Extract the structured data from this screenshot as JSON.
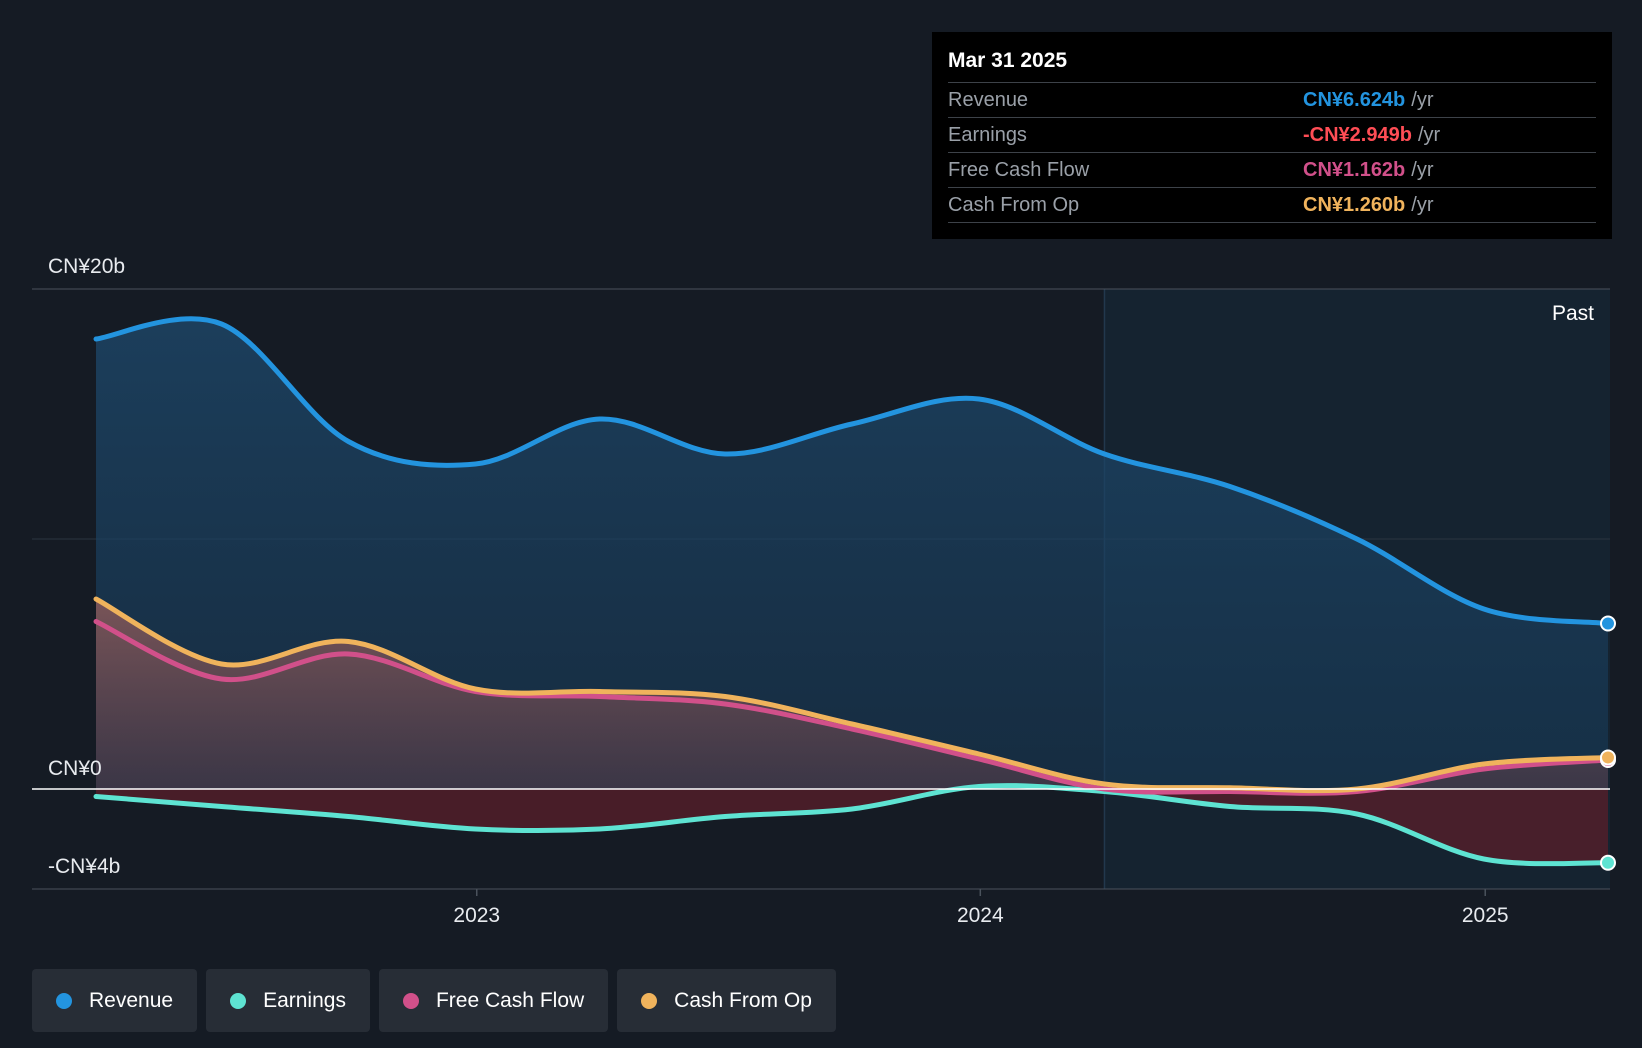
{
  "tooltip": {
    "date": "Mar 31 2025",
    "rows": [
      {
        "label": "Revenue",
        "value": "CN¥6.624b",
        "unit": "/yr",
        "color": "#2394df"
      },
      {
        "label": "Earnings",
        "value": "-CN¥2.949b",
        "unit": "/yr",
        "color": "#ff4d55"
      },
      {
        "label": "Free Cash Flow",
        "value": "CN¥1.162b",
        "unit": "/yr",
        "color": "#d1508a"
      },
      {
        "label": "Cash From Op",
        "value": "CN¥1.260b",
        "unit": "/yr",
        "color": "#f0b35c"
      }
    ]
  },
  "past_label": "Past",
  "legend": [
    {
      "label": "Revenue",
      "color": "#2394df"
    },
    {
      "label": "Earnings",
      "color": "#5ee3d2"
    },
    {
      "label": "Free Cash Flow",
      "color": "#d1508a"
    },
    {
      "label": "Cash From Op",
      "color": "#f0b35c"
    }
  ],
  "chart_data": {
    "type": "area",
    "title": "",
    "xlabel": "",
    "ylabel": "",
    "x_range": [
      "2022-03-31",
      "2025-03-31"
    ],
    "ylim": [
      -4,
      20
    ],
    "y_tick_labels": [
      {
        "value": 20,
        "label": "CN¥20b"
      },
      {
        "value": 0,
        "label": "CN¥0"
      },
      {
        "value": -4,
        "label": "-CN¥4b"
      }
    ],
    "x_tick_labels": [
      {
        "date": "2023-01-01",
        "label": "2023"
      },
      {
        "date": "2024-01-01",
        "label": "2024"
      },
      {
        "date": "2025-01-01",
        "label": "2025"
      }
    ],
    "past_divider_date": "2024-03-31",
    "x": [
      "2022-03-31",
      "2022-06-30",
      "2022-09-30",
      "2022-12-31",
      "2023-03-31",
      "2023-06-30",
      "2023-09-30",
      "2023-12-31",
      "2024-03-31",
      "2024-06-30",
      "2024-09-30",
      "2024-12-31",
      "2025-03-31"
    ],
    "series": [
      {
        "name": "Revenue",
        "color": "#2394df",
        "values": [
          18.0,
          18.6,
          13.9,
          13.0,
          14.8,
          13.4,
          14.6,
          15.6,
          13.4,
          12.1,
          10.0,
          7.2,
          6.62
        ]
      },
      {
        "name": "Earnings",
        "color": "#5ee3d2",
        "values": [
          -0.3,
          -0.7,
          -1.1,
          -1.6,
          -1.6,
          -1.1,
          -0.8,
          0.1,
          -0.1,
          -0.7,
          -1.0,
          -2.8,
          -2.95
        ]
      },
      {
        "name": "Free Cash Flow",
        "color": "#d1508a",
        "values": [
          6.7,
          4.4,
          5.4,
          3.9,
          3.7,
          3.4,
          2.4,
          1.2,
          0.0,
          -0.1,
          -0.1,
          0.8,
          1.16
        ]
      },
      {
        "name": "Cash From Op",
        "color": "#f0b35c",
        "values": [
          7.6,
          5.0,
          5.9,
          4.0,
          3.9,
          3.7,
          2.6,
          1.4,
          0.2,
          0.05,
          0.0,
          1.0,
          1.26
        ]
      }
    ],
    "grid": true,
    "legend_position": "bottom-left"
  }
}
